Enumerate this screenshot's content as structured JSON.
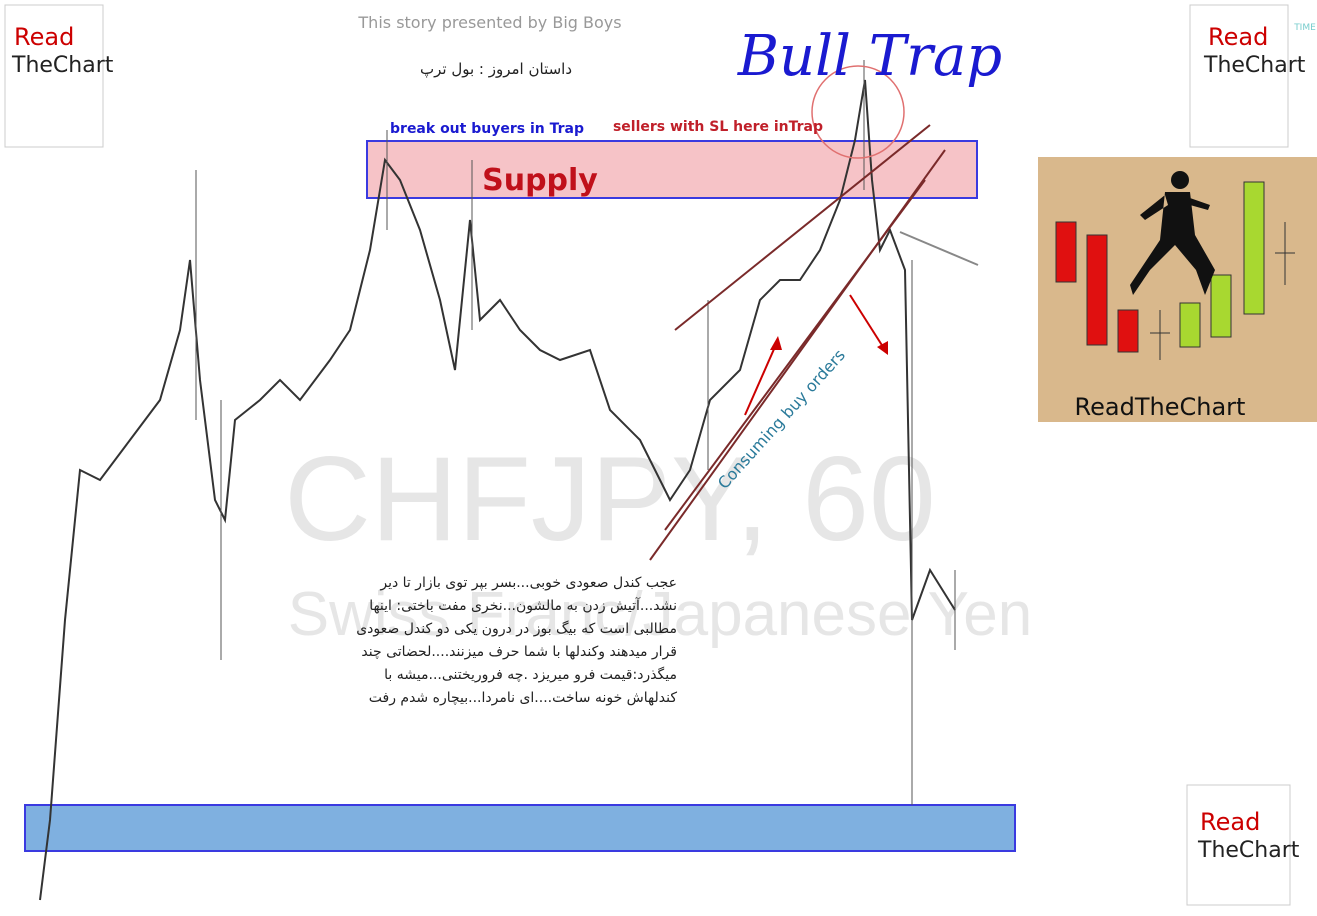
{
  "header": {
    "credit": "This story presented by Big Boys",
    "story": "داستان امروز : بول ترپ",
    "title": "Bull Trap",
    "corner": "TIME"
  },
  "annotations": {
    "breakout": "break out buyers in Trap",
    "sellers": "sellers with SL here inTrap",
    "supply": "Supply",
    "consuming": "Consuming buy orders"
  },
  "watermark": {
    "symbol": "CHFJPY, 60",
    "name": "Swiss Franc/Japanese Yen"
  },
  "story_text": [
    "عجب کندل صعودی خوبی...بسر بپر توی بازار تا دیر",
    "نشد...آتیش زدن به مالشون...نخری مفت باختی: اینها",
    "مطالبی است که بیگ بوز در درون یکی دو کندل صعودی",
    "قرار میدهند وکندلها با شما حرف میزنند....لحضاتی چند",
    "میگذرد:قیمت فرو میریزد .چه فروریختنی...میشه با",
    "کندلهاش خونه ساخت....ای نامردا...بیچاره شدم رفت"
  ],
  "logos": [
    {
      "top": "Read",
      "bottom": "TheChart"
    },
    {
      "top": "Read",
      "bottom": "TheChart"
    },
    {
      "top": "Read",
      "bottom": "TheChart"
    }
  ],
  "panel": {
    "label": "ReadTheChart"
  }
}
